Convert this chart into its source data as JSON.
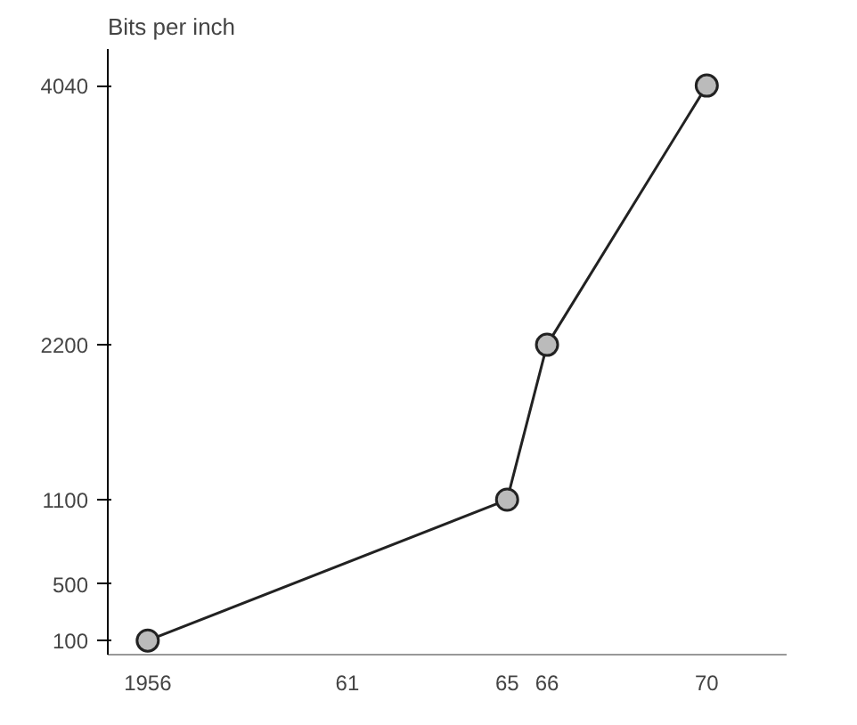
{
  "chart_data": {
    "type": "line",
    "ylabel": "Bits per inch",
    "x": [
      1956,
      1965,
      1966,
      1970
    ],
    "series": [
      {
        "color": "#222222",
        "values": [
          100,
          1100,
          2200,
          4040
        ]
      }
    ],
    "xlim": [
      1955,
      1972
    ],
    "ylim": [
      0,
      4300
    ],
    "xticks": [
      1956,
      {
        "value": 1961,
        "label": "61"
      },
      {
        "value": 1965,
        "label": "65"
      },
      {
        "value": 1966,
        "label": "66"
      },
      {
        "value": 1970,
        "label": "70"
      }
    ],
    "yticks": [
      100,
      500,
      1100,
      2200,
      4040
    ],
    "marker": "circle",
    "grid": false
  }
}
